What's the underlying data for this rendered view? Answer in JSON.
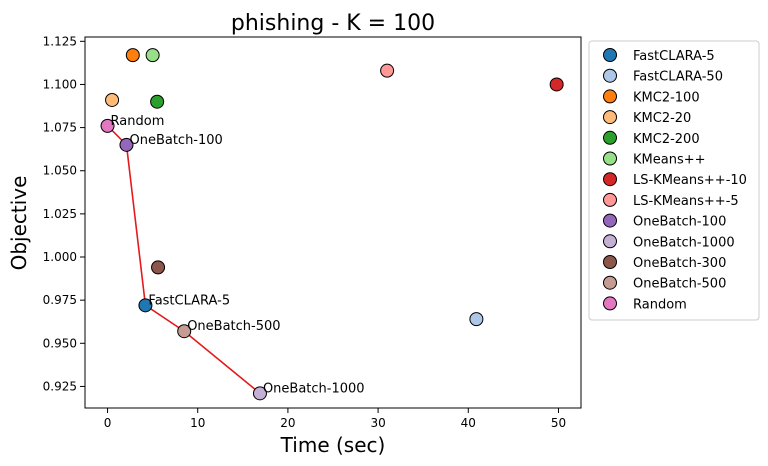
{
  "chart_data": {
    "type": "scatter",
    "title": "phishing - K = 100",
    "xlabel": "Time (sec)",
    "ylabel": "Objective",
    "xlim": [
      -2.5,
      52.5
    ],
    "ylim": [
      0.9125,
      1.1275
    ],
    "xticks": [
      0,
      10,
      20,
      30,
      40,
      50
    ],
    "xtick_labels": [
      "0",
      "10",
      "20",
      "30",
      "40",
      "50"
    ],
    "yticks": [
      0.925,
      0.95,
      0.975,
      1.0,
      1.025,
      1.05,
      1.075,
      1.1,
      1.125
    ],
    "ytick_labels": [
      "0.925",
      "0.950",
      "0.975",
      "1.000",
      "1.025",
      "1.050",
      "1.075",
      "1.100",
      "1.125"
    ],
    "grid": false,
    "legend_position": "outside-right",
    "series": [
      {
        "name": "FastCLARA-5",
        "color": "#1f77b4",
        "x": 4.2,
        "y": 0.972
      },
      {
        "name": "FastCLARA-50",
        "color": "#aec7e8",
        "x": 40.9,
        "y": 0.964
      },
      {
        "name": "KMC2-100",
        "color": "#ff7f0e",
        "x": 2.8,
        "y": 1.117
      },
      {
        "name": "KMC2-20",
        "color": "#ffbb78",
        "x": 0.5,
        "y": 1.091
      },
      {
        "name": "KMC2-200",
        "color": "#2ca02c",
        "x": 5.5,
        "y": 1.09
      },
      {
        "name": "KMeans++",
        "color": "#98df8a",
        "x": 5.0,
        "y": 1.117
      },
      {
        "name": "LS-KMeans++-10",
        "color": "#d62728",
        "x": 49.8,
        "y": 1.1
      },
      {
        "name": "LS-KMeans++-5",
        "color": "#ff9896",
        "x": 31.0,
        "y": 1.108
      },
      {
        "name": "OneBatch-100",
        "color": "#9467bd",
        "x": 2.1,
        "y": 1.065
      },
      {
        "name": "OneBatch-1000",
        "color": "#c5b0d5",
        "x": 16.9,
        "y": 0.921
      },
      {
        "name": "OneBatch-300",
        "color": "#8c564b",
        "x": 5.6,
        "y": 0.994
      },
      {
        "name": "OneBatch-500",
        "color": "#c49c94",
        "x": 8.5,
        "y": 0.957
      },
      {
        "name": "Random",
        "color": "#e377c2",
        "x": 0.0,
        "y": 1.076
      }
    ],
    "pareto_line": {
      "color": "#e41a1c",
      "x": [
        0.0,
        2.1,
        4.2,
        8.5,
        16.9
      ],
      "y": [
        1.076,
        1.065,
        0.972,
        0.957,
        0.921
      ]
    },
    "annotations": [
      {
        "text": "Random",
        "x": 0.0,
        "y": 1.076
      },
      {
        "text": "OneBatch-100",
        "x": 2.1,
        "y": 1.065
      },
      {
        "text": "FastCLARA-5",
        "x": 4.2,
        "y": 0.972
      },
      {
        "text": "OneBatch-500",
        "x": 8.5,
        "y": 0.957
      },
      {
        "text": "OneBatch-1000",
        "x": 16.9,
        "y": 0.921
      }
    ]
  }
}
